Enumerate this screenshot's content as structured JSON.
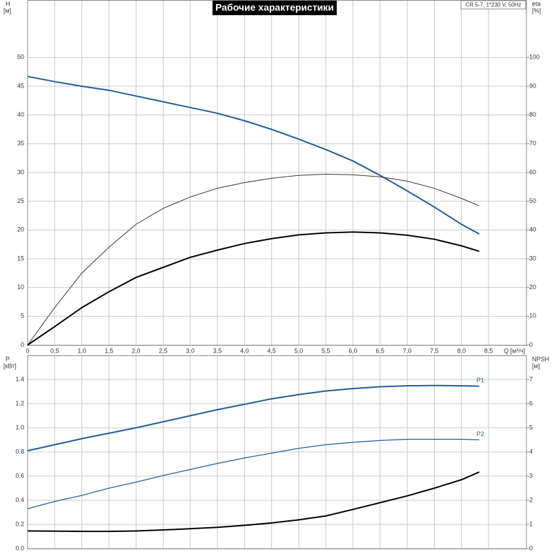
{
  "chart_data": [
    {
      "type": "line",
      "title": "Рабочие характеристики",
      "annotation": "CR 5-7, 1*230 V, 50Hz",
      "xlabel": "Q [м³/ч]",
      "ylabel": "H",
      "yunit": "[м]",
      "y2label": "eta",
      "y2unit": "[%]",
      "xlim": [
        0,
        9.2
      ],
      "xticks": [
        0,
        {
          "value": 0.5,
          "label": "0,5"
        },
        {
          "value": 1,
          "label": "1,0"
        },
        {
          "value": 1.5,
          "label": "1,5"
        },
        {
          "value": 2,
          "label": "2,0"
        },
        {
          "value": 2.5,
          "label": "2,5"
        },
        {
          "value": 3,
          "label": "3,0"
        },
        {
          "value": 3.5,
          "label": "3,5"
        },
        {
          "value": 4,
          "label": "4,0"
        },
        {
          "value": 4.5,
          "label": "4,5"
        },
        {
          "value": 5,
          "label": "5,0"
        },
        {
          "value": 5.5,
          "label": "5,5"
        },
        {
          "value": 6,
          "label": "6,0"
        },
        {
          "value": 6.5,
          "label": "6,5"
        },
        {
          "value": 7,
          "label": "7,0"
        },
        {
          "value": 7.5,
          "label": "7,5"
        },
        {
          "value": 8,
          "label": "8,0"
        },
        {
          "value": 8.5,
          "label": "8,5"
        }
      ],
      "ylim": [
        0,
        60
      ],
      "yticks": [
        0,
        5,
        10,
        15,
        20,
        25,
        30,
        35,
        40,
        45,
        50
      ],
      "y2lim": [
        0,
        120
      ],
      "y2ticks": [
        0,
        10,
        20,
        30,
        40,
        50,
        60,
        70,
        80,
        90,
        100
      ],
      "grid": true,
      "x": [
        0,
        0.5,
        1,
        1.5,
        2,
        2.5,
        3,
        3.5,
        4,
        4.5,
        5,
        5.5,
        6,
        6.5,
        7,
        7.5,
        8,
        8.33
      ],
      "series": [
        {
          "color": "#1f5a99",
          "linewidth": 2,
          "values": [
            46.7,
            45.8,
            45,
            44.3,
            43.3,
            42.3,
            41.3,
            40.3,
            39,
            37.5,
            35.8,
            34,
            32,
            29.5,
            26.8,
            24,
            21,
            19.3
          ]
        },
        {
          "color": "#333333",
          "linewidth": 1,
          "axis": "y2",
          "values": [
            0,
            13,
            25,
            34,
            42,
            47.5,
            51.5,
            54.5,
            56.5,
            58,
            59,
            59.4,
            59.2,
            58.5,
            57,
            54.5,
            51,
            48.4
          ]
        },
        {
          "color": "#000000",
          "linewidth": 2,
          "axis": "y2",
          "values": [
            0,
            6.4,
            13,
            18.5,
            23.5,
            27,
            30.5,
            33,
            35.3,
            37,
            38.3,
            39,
            39.3,
            39,
            38.2,
            36.8,
            34.5,
            32.6
          ]
        }
      ]
    },
    {
      "type": "line",
      "ylabel": "P",
      "yunit": "[кВт]",
      "y2label": "NPSH",
      "y2unit": "[м]",
      "xlim": [
        0,
        9.2
      ],
      "xticks": [
        0,
        0.5,
        1,
        1.5,
        2,
        2.5,
        3,
        3.5,
        4,
        4.5,
        5,
        5.5,
        6,
        6.5,
        7,
        7.5,
        8,
        8.5
      ],
      "ylim": [
        0,
        1.6
      ],
      "yticks": [
        {
          "value": 0,
          "label": "0.0"
        },
        0.2,
        0.4,
        0.6,
        0.8,
        {
          "value": 1,
          "label": "1.0"
        },
        1.2,
        1.4
      ],
      "y2lim": [
        0,
        8
      ],
      "y2ticks": [
        0,
        1,
        2,
        3,
        4,
        5,
        6,
        7
      ],
      "grid": true,
      "x": [
        0,
        0.5,
        1,
        1.5,
        2,
        2.5,
        3,
        3.5,
        4,
        4.5,
        5,
        5.5,
        6,
        6.5,
        7,
        7.5,
        8,
        8.33
      ],
      "series": [
        {
          "name": "P1",
          "color": "#1f5a99",
          "linewidth": 2,
          "values": [
            0.81,
            0.86,
            0.91,
            0.955,
            1.0,
            1.05,
            1.1,
            1.15,
            1.195,
            1.24,
            1.275,
            1.305,
            1.325,
            1.34,
            1.348,
            1.35,
            1.348,
            1.345
          ]
        },
        {
          "name": "P2",
          "color": "#1f5a99",
          "linewidth": 1.2,
          "values": [
            0.33,
            0.39,
            0.44,
            0.5,
            0.55,
            0.605,
            0.655,
            0.705,
            0.75,
            0.79,
            0.83,
            0.86,
            0.88,
            0.895,
            0.905,
            0.905,
            0.905,
            0.9
          ]
        },
        {
          "color": "#000000",
          "linewidth": 2,
          "axis": "y2",
          "values": [
            0.73,
            0.72,
            0.71,
            0.71,
            0.73,
            0.77,
            0.82,
            0.88,
            0.96,
            1.06,
            1.19,
            1.35,
            1.62,
            1.9,
            2.18,
            2.5,
            2.85,
            3.17
          ]
        }
      ]
    }
  ]
}
